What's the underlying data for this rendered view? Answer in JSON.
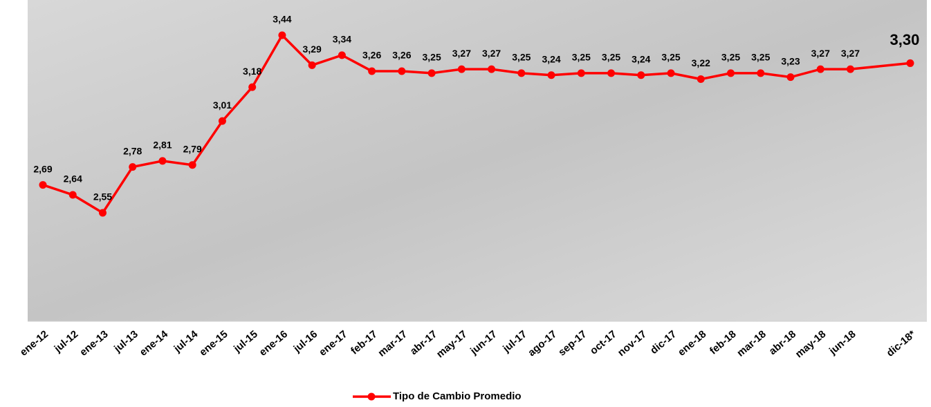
{
  "chart_data": {
    "type": "line",
    "categories": [
      "ene-12",
      "jul-12",
      "ene-13",
      "jul-13",
      "ene-14",
      "jul-14",
      "ene-15",
      "jul-15",
      "ene-16",
      "jul-16",
      "ene-17",
      "feb-17",
      "mar-17",
      "abr-17",
      "may-17",
      "jun-17",
      "jul-17",
      "ago-17",
      "sep-17",
      "oct-17",
      "nov-17",
      "dic-17",
      "ene-18",
      "feb-18",
      "mar-18",
      "abr-18",
      "may-18",
      "jun-18",
      "dic-18*"
    ],
    "series": [
      {
        "name": "Tipo de Cambio Promedio",
        "color": "#ff0000",
        "values": [
          2.69,
          2.64,
          2.55,
          2.78,
          2.81,
          2.79,
          3.01,
          3.18,
          3.44,
          3.29,
          3.34,
          3.26,
          3.26,
          3.25,
          3.27,
          3.27,
          3.25,
          3.24,
          3.25,
          3.25,
          3.24,
          3.25,
          3.22,
          3.25,
          3.25,
          3.23,
          3.27,
          3.27,
          3.3
        ],
        "value_labels": [
          "2,69",
          "2,64",
          "2,55",
          "2,78",
          "2,81",
          "2,79",
          "3,01",
          "3,18",
          "3,44",
          "3,29",
          "3,34",
          "3,26",
          "3,26",
          "3,25",
          "3,27",
          "3,27",
          "3,25",
          "3,24",
          "3,25",
          "3,25",
          "3,24",
          "3,25",
          "3,22",
          "3,25",
          "3,25",
          "3,23",
          "3,27",
          "3,27",
          "3,30"
        ]
      }
    ],
    "legend": "bottom"
  }
}
